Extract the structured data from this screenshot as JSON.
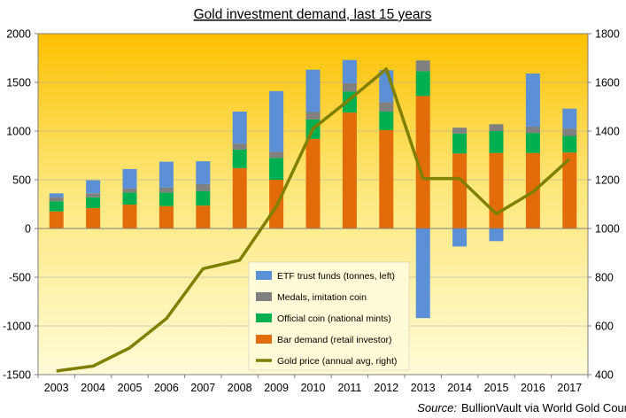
{
  "chart_data": {
    "type": "bar",
    "title": "Gold investment  demand, last 15 years",
    "categories": [
      "2003",
      "2004",
      "2005",
      "2006",
      "2007",
      "2008",
      "2009",
      "2010",
      "2011",
      "2012",
      "2013",
      "2014",
      "2015",
      "2016",
      "2017"
    ],
    "stacked": true,
    "y_left": {
      "min": -1500,
      "max": 2000,
      "step": 500,
      "ticks": [
        "2000",
        "1500",
        "1000",
        "500",
        "0",
        "-500",
        "-1000",
        "-1500"
      ]
    },
    "y_right": {
      "min": 400,
      "max": 1800,
      "step": 200,
      "ticks": [
        "1800",
        "1600",
        "1400",
        "1200",
        "1000",
        "800",
        "600",
        "400"
      ]
    },
    "series": [
      {
        "name": "Bar demand (retail investor)",
        "axis": "left",
        "color": "#e36c0a",
        "values": [
          175,
          210,
          245,
          230,
          235,
          620,
          500,
          920,
          1190,
          1010,
          1360,
          770,
          775,
          775,
          780
        ]
      },
      {
        "name": "Official coin (national mints)",
        "axis": "left",
        "color": "#00b050",
        "values": [
          105,
          110,
          125,
          140,
          150,
          190,
          225,
          200,
          215,
          190,
          255,
          205,
          225,
          205,
          170
        ]
      },
      {
        "name": "Medals, imitation coin",
        "axis": "left",
        "color": "#808080",
        "values": [
          40,
          40,
          40,
          50,
          70,
          60,
          60,
          75,
          85,
          95,
          110,
          60,
          70,
          65,
          75
        ]
      },
      {
        "name": "ETF trust funds (tonnes, left)",
        "axis": "left",
        "color": "#5b8fd6",
        "values": [
          40,
          135,
          200,
          265,
          235,
          330,
          625,
          435,
          240,
          330,
          -920,
          -185,
          -130,
          545,
          205
        ]
      },
      {
        "name": "Gold price (annual avg, right)",
        "axis": "right",
        "type": "line",
        "color": "#7f7f00",
        "values": [
          415,
          435,
          510,
          630,
          835,
          870,
          1090,
          1410,
          1530,
          1655,
          1205,
          1205,
          1060,
          1150,
          1285
        ]
      }
    ],
    "legend": {
      "placement": "bottom-center",
      "entries": [
        "ETF trust funds (tonnes, left)",
        "Medals, imitation coin",
        "Official coin (national mints)",
        "Bar demand (retail investor)",
        "Gold price (annual avg, right)"
      ]
    },
    "source": {
      "label": "Source:",
      "text": "BullionVault via World Gold Council via Metals Focus, GFMS"
    }
  }
}
